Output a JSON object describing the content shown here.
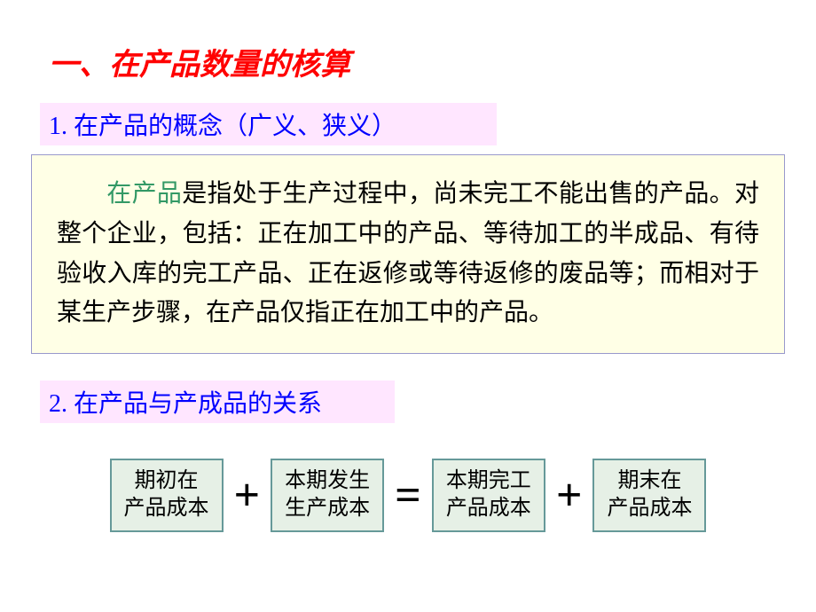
{
  "title": "一、在产品数量的核算",
  "subtitle1": "1. 在产品的概念（广义、狭义）",
  "content": {
    "highlight": "在产品",
    "text": "是指处于生产过程中，尚未完工不能出售的产品。对整个企业，包括：正在加工中的产品、等待加工的半成品、有待验收入库的完工产品、正在返修或等待返修的废品等；而相对于某生产步骤，在产品仅指正在加工中的产品。"
  },
  "subtitle2": "2. 在产品与产成品的关系",
  "equation": {
    "box1": {
      "line1": "期初在",
      "line2": "产品成本"
    },
    "op1": "+",
    "box2": {
      "line1": "本期发生",
      "line2": "生产成本"
    },
    "op2": "=",
    "box3": {
      "line1": "本期完工",
      "line2": "产品成本"
    },
    "op3": "+",
    "box4": {
      "line1": "期末在",
      "line2": "产品成本"
    }
  },
  "colors": {
    "title_color": "#ff0000",
    "subtitle_color": "#0000ff",
    "subtitle_bg": "#ffe6ff",
    "content_bg": "#ffffe6",
    "content_border": "#9999cc",
    "highlight_color": "#339966",
    "eqbox_border": "#669999",
    "eqbox_bg": "#e6f0e6"
  }
}
